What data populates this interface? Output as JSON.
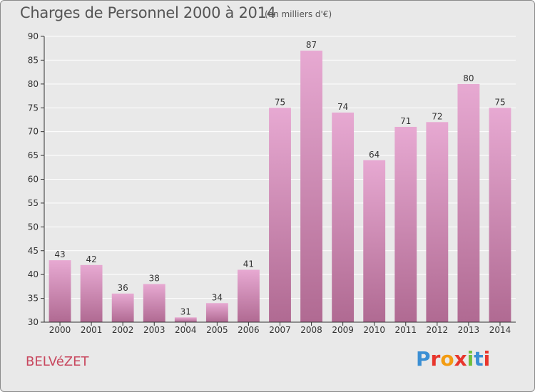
{
  "header": {
    "title": "Charges de Personnel 2000 à 2014",
    "subtitle": "(en milliers d'€)"
  },
  "footer": {
    "place": "BELVéZET",
    "logo_text": "Proxiti",
    "logo_colors": [
      "#3b8fd4",
      "#e8362d",
      "#f39c12",
      "#e8362d",
      "#6fbf3b",
      "#3b8fd4",
      "#e8362d"
    ]
  },
  "colors": {
    "background": "#e9e9e9",
    "bar_top": "#e7a9d2",
    "bar_bottom": "#b06a92",
    "axis": "#333333",
    "grid": "#ffffff"
  },
  "chart_data": {
    "type": "bar",
    "categories": [
      "2000",
      "2001",
      "2002",
      "2003",
      "2004",
      "2005",
      "2006",
      "2007",
      "2008",
      "2009",
      "2010",
      "2011",
      "2012",
      "2013",
      "2014"
    ],
    "values": [
      43,
      42,
      36,
      38,
      31,
      34,
      41,
      75,
      87,
      74,
      64,
      71,
      72,
      80,
      75
    ],
    "ylim": [
      30,
      90
    ],
    "yticks": [
      30,
      35,
      40,
      45,
      50,
      55,
      60,
      65,
      70,
      75,
      80,
      85,
      90
    ],
    "grid": true,
    "data_labels": true
  }
}
